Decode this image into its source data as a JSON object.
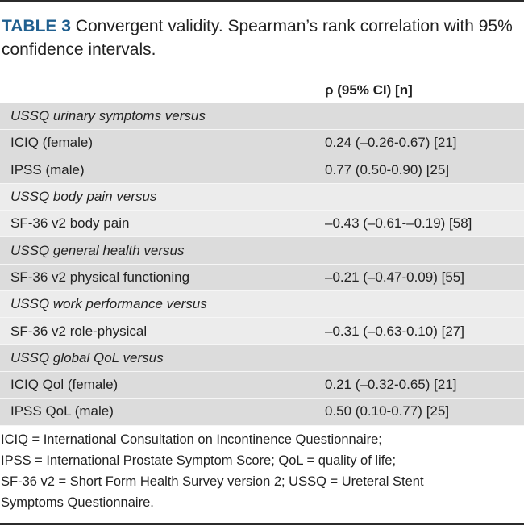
{
  "title": {
    "label": "TABLE 3",
    "text": "Convergent validity. Spearman’s rank correlation with 95% confidence intervals."
  },
  "table": {
    "header": "ρ (95% CI) [n]",
    "groups": [
      {
        "heading": "USSQ urinary symptoms versus",
        "rows": [
          [
            "ICIQ (female)",
            "0.24 (–0.26-0.67) [21]"
          ],
          [
            "IPSS (male)",
            "0.77 (0.50-0.90) [25]"
          ]
        ]
      },
      {
        "heading": "USSQ body pain versus",
        "rows": [
          [
            "SF-36 v2 body pain",
            "–0.43 (–0.61-–0.19) [58]"
          ]
        ]
      },
      {
        "heading": "USSQ general health versus",
        "rows": [
          [
            "SF-36 v2 physical functioning",
            "–0.21 (–0.47-0.09) [55]"
          ]
        ]
      },
      {
        "heading": "USSQ work performance versus",
        "rows": [
          [
            "SF-36 v2 role-physical",
            "–0.31 (–0.63-0.10) [27]"
          ]
        ]
      },
      {
        "heading": "USSQ global QoL versus",
        "rows": [
          [
            "ICIQ Qol (female)",
            "0.21 (–0.32-0.65) [21]"
          ],
          [
            "IPSS QoL (male)",
            "0.50 (0.10-0.77) [25]"
          ]
        ]
      }
    ]
  },
  "footnote": [
    "ICIQ = International Consultation on Incontinence Questionnaire;",
    "IPSS = International Prostate Symptom Score; QoL = quality of life;",
    "SF-36 v2 = Short Form Health Survey version 2; USSQ = Ureteral Stent",
    "Symptoms Questionnaire."
  ]
}
